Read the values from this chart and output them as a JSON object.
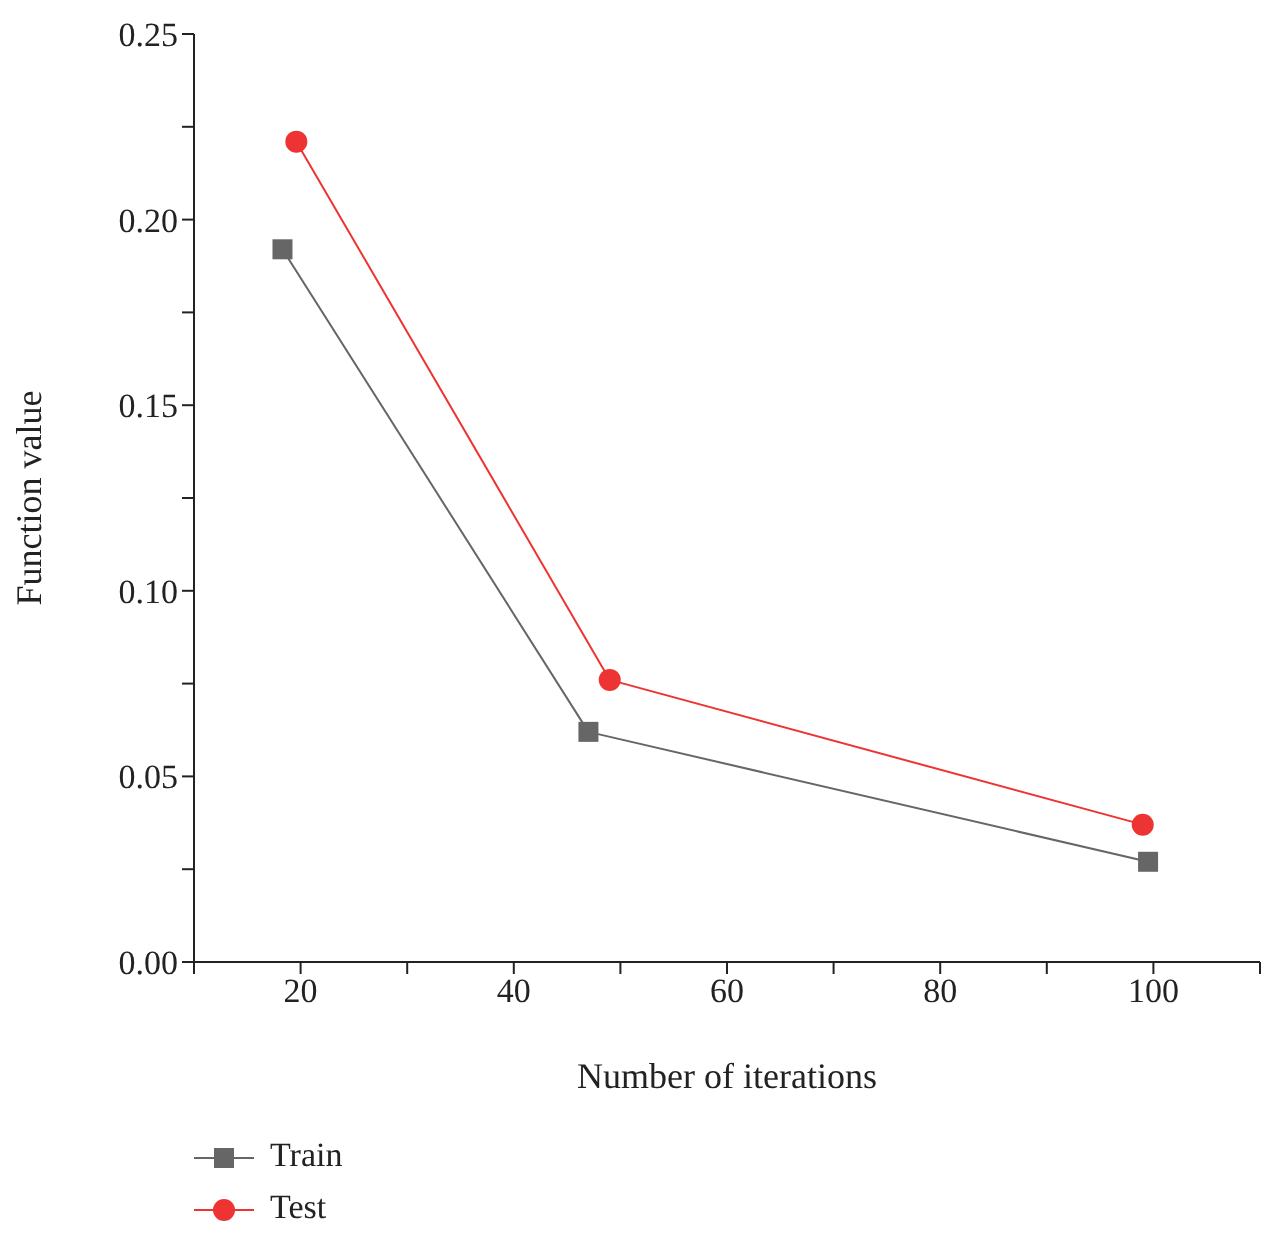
{
  "chart_data": {
    "type": "line",
    "xlabel": "Number of iterations",
    "ylabel": "Function value",
    "xlim": [
      10,
      110
    ],
    "xticks": [
      {
        "value": 10,
        "label": null
      },
      20,
      {
        "value": 30,
        "label": null
      },
      40,
      {
        "value": 50,
        "label": null
      },
      60,
      {
        "value": 70,
        "label": null
      },
      80,
      {
        "value": 90,
        "label": null
      },
      100,
      {
        "value": 110,
        "label": null
      }
    ],
    "ylim": [
      0,
      0.25
    ],
    "yticks": [
      {
        "value": 0,
        "label": "0.00"
      },
      {
        "value": 0.025,
        "label": null
      },
      {
        "value": 0.05,
        "label": "0.05"
      },
      {
        "value": 0.075,
        "label": null
      },
      {
        "value": 0.1,
        "label": "0.10"
      },
      {
        "value": 0.125,
        "label": null
      },
      {
        "value": 0.15,
        "label": "0.15"
      },
      {
        "value": 0.175,
        "label": null
      },
      {
        "value": 0.2,
        "label": "0.20"
      },
      {
        "value": 0.225,
        "label": null
      },
      {
        "value": 0.25,
        "label": "0.25"
      }
    ],
    "grid": false,
    "legend": "bottom left",
    "line_style": "solid",
    "series": [
      {
        "name": "Train",
        "color": "#666666",
        "marker": "square",
        "x": [
          18.3,
          47,
          99.5
        ],
        "values": [
          0.192,
          0.062,
          0.027
        ]
      },
      {
        "name": "Test",
        "color": "#ee3333",
        "marker": "circle",
        "x": [
          19.6,
          49,
          99
        ],
        "values": [
          0.221,
          0.076,
          0.037
        ]
      }
    ]
  }
}
